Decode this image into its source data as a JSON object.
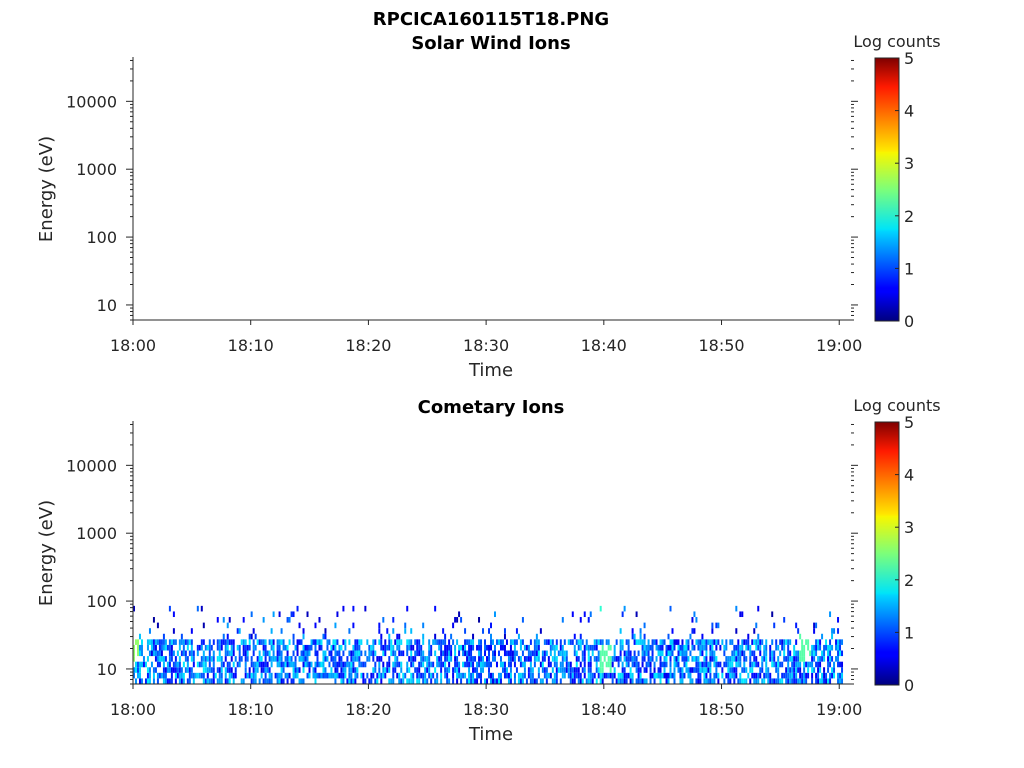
{
  "figure": {
    "title": "RPCICA160115T18.PNG"
  },
  "chart_data": [
    {
      "type": "heatmap",
      "title": "Solar Wind Ions",
      "xlabel": "Time",
      "ylabel": "Energy (eV)",
      "x_tick_labels": [
        "18:00",
        "18:10",
        "18:20",
        "18:30",
        "18:40",
        "18:50",
        "19:00"
      ],
      "x_range_minutes": [
        0,
        61
      ],
      "y_scale": "log",
      "y_range": [
        6,
        45000
      ],
      "y_tick_values": [
        10,
        100,
        1000,
        10000
      ],
      "y_tick_labels": [
        "10",
        "100",
        "1000",
        "10000"
      ],
      "colorbar": {
        "label": "Log counts",
        "range": [
          0,
          5
        ],
        "tick_labels": [
          "0",
          "1",
          "2",
          "3",
          "4",
          "5"
        ],
        "colormap": "jet"
      },
      "data_description": "empty",
      "cells": []
    },
    {
      "type": "heatmap",
      "title": "Cometary Ions",
      "xlabel": "Time",
      "ylabel": "Energy (eV)",
      "x_tick_labels": [
        "18:00",
        "18:10",
        "18:20",
        "18:30",
        "18:40",
        "18:50",
        "19:00"
      ],
      "x_range_minutes": [
        0,
        61
      ],
      "y_scale": "log",
      "y_range": [
        6,
        45000
      ],
      "y_tick_values": [
        10,
        100,
        1000,
        10000
      ],
      "y_tick_labels": [
        "10",
        "100",
        "1000",
        "10000"
      ],
      "colorbar": {
        "label": "Log counts",
        "range": [
          0,
          5
        ],
        "tick_labels": [
          "0",
          "1",
          "2",
          "3",
          "4",
          "5"
        ],
        "colormap": "jet"
      },
      "band": {
        "energy_range_eV": [
          6,
          28
        ],
        "typical_log_counts": [
          0.2,
          2.0
        ]
      },
      "sparse": {
        "energy_range_eV": [
          30,
          85
        ],
        "typical_log_counts": [
          0.1,
          1.8
        ]
      },
      "peaks": [
        {
          "time_min": 0.0,
          "energy_eV": 20,
          "log_counts": 2.6
        },
        {
          "time_min": 35.6,
          "energy_eV": 70,
          "log_counts": 2.0
        },
        {
          "time_min": 40.0,
          "energy_eV": 15,
          "log_counts": 2.3
        },
        {
          "time_min": 40.0,
          "energy_eV": 70,
          "log_counts": 2.1
        },
        {
          "time_min": 57.0,
          "energy_eV": 20,
          "log_counts": 2.3
        }
      ]
    }
  ]
}
